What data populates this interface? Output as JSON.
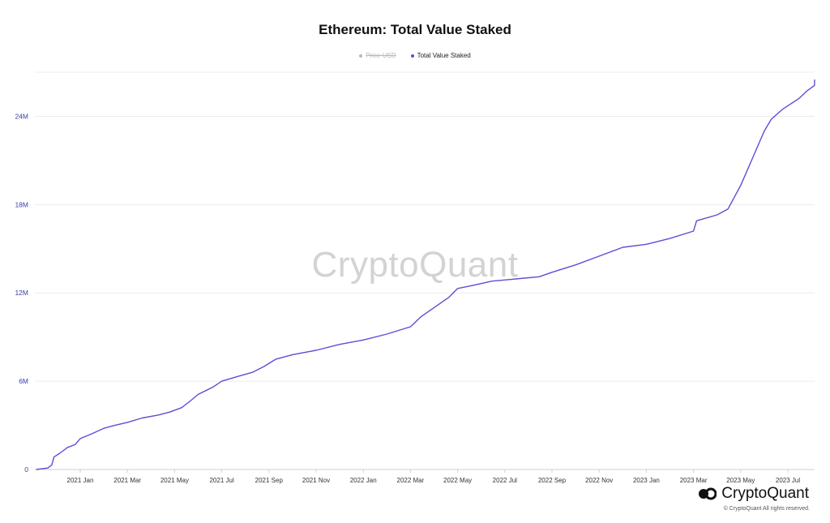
{
  "title": "Ethereum: Total Value Staked",
  "legend": [
    {
      "label": "Price USD",
      "color": "#b8b8b8",
      "active": false
    },
    {
      "label": "Total Value Staked",
      "color": "#5b4fd6",
      "active": true
    }
  ],
  "watermark": "CryptoQuant",
  "brand": {
    "name": "CryptoQuant",
    "copyright": "© CryptoQuant All rights reserved."
  },
  "colors": {
    "line": "#5b4fd6",
    "grid": "#ececec",
    "axis_text": "#3b3bb0",
    "x_text": "#333333"
  },
  "chart_data": {
    "type": "line",
    "title": "Ethereum: Total Value Staked",
    "xlabel": "",
    "ylabel": "",
    "ylim": [
      0,
      27000000
    ],
    "y_ticks": [
      {
        "value": 0,
        "label": "0"
      },
      {
        "value": 6000000,
        "label": "6M"
      },
      {
        "value": 12000000,
        "label": "12M"
      },
      {
        "value": 18000000,
        "label": "18M"
      },
      {
        "value": 24000000,
        "label": "24M"
      }
    ],
    "x_ticks": [
      "2021 Jan",
      "2021 Mar",
      "2021 May",
      "2021 Jul",
      "2021 Sep",
      "2021 Nov",
      "2022 Jan",
      "2022 Mar",
      "2022 May",
      "2022 Jul",
      "2022 Sep",
      "2022 Nov",
      "2023 Jan",
      "2023 Mar",
      "2023 May",
      "2023 Jul"
    ],
    "grid": true,
    "legend_position": "top-center",
    "series": [
      {
        "name": "Total Value Staked",
        "color": "#5b4fd6",
        "points": [
          [
            "2020-11-05",
            0
          ],
          [
            "2020-11-20",
            100000
          ],
          [
            "2020-11-25",
            300000
          ],
          [
            "2020-11-28",
            850000
          ],
          [
            "2020-12-05",
            1100000
          ],
          [
            "2020-12-15",
            1500000
          ],
          [
            "2020-12-25",
            1700000
          ],
          [
            "2021-01-01",
            2100000
          ],
          [
            "2021-01-15",
            2400000
          ],
          [
            "2021-02-01",
            2800000
          ],
          [
            "2021-02-15",
            3000000
          ],
          [
            "2021-03-01",
            3200000
          ],
          [
            "2021-03-20",
            3500000
          ],
          [
            "2021-04-10",
            3700000
          ],
          [
            "2021-04-25",
            3900000
          ],
          [
            "2021-05-10",
            4200000
          ],
          [
            "2021-05-20",
            4600000
          ],
          [
            "2021-06-01",
            5100000
          ],
          [
            "2021-06-20",
            5600000
          ],
          [
            "2021-07-01",
            6000000
          ],
          [
            "2021-07-20",
            6300000
          ],
          [
            "2021-08-10",
            6600000
          ],
          [
            "2021-08-25",
            7000000
          ],
          [
            "2021-09-10",
            7500000
          ],
          [
            "2021-10-01",
            7800000
          ],
          [
            "2021-11-01",
            8100000
          ],
          [
            "2021-12-01",
            8500000
          ],
          [
            "2022-01-01",
            8800000
          ],
          [
            "2022-02-01",
            9200000
          ],
          [
            "2022-03-01",
            9700000
          ],
          [
            "2022-03-15",
            10400000
          ],
          [
            "2022-04-01",
            11000000
          ],
          [
            "2022-04-20",
            11700000
          ],
          [
            "2022-05-01",
            12300000
          ],
          [
            "2022-05-20",
            12500000
          ],
          [
            "2022-06-15",
            12800000
          ],
          [
            "2022-07-15",
            12950000
          ],
          [
            "2022-08-15",
            13100000
          ],
          [
            "2022-09-01",
            13400000
          ],
          [
            "2022-10-01",
            13900000
          ],
          [
            "2022-11-01",
            14500000
          ],
          [
            "2022-12-01",
            15100000
          ],
          [
            "2023-01-01",
            15300000
          ],
          [
            "2023-02-01",
            15700000
          ],
          [
            "2023-03-01",
            16200000
          ],
          [
            "2023-03-05",
            16900000
          ],
          [
            "2023-04-01",
            17300000
          ],
          [
            "2023-04-15",
            17700000
          ],
          [
            "2023-05-01",
            19300000
          ],
          [
            "2023-05-15",
            21000000
          ],
          [
            "2023-06-01",
            23000000
          ],
          [
            "2023-06-10",
            23800000
          ],
          [
            "2023-06-25",
            24500000
          ],
          [
            "2023-07-15",
            25200000
          ],
          [
            "2023-07-25",
            25700000
          ],
          [
            "2023-08-05",
            26100000
          ],
          [
            "2023-08-10",
            26500000
          ]
        ]
      }
    ]
  }
}
